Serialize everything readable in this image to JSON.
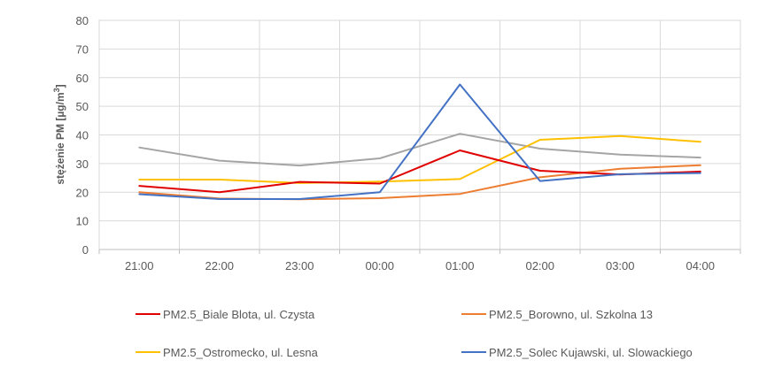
{
  "chart_data": {
    "type": "line",
    "title": "",
    "xlabel": "",
    "ylabel": "stężenie PM [µg/m",
    "ylabel_superscript": "3",
    "ylabel_suffix": "]",
    "ylim": [
      0,
      80
    ],
    "yticks": [
      "0",
      "10",
      "20",
      "30",
      "40",
      "50",
      "60",
      "70",
      "80"
    ],
    "categories": [
      "21:00",
      "22:00",
      "23:00",
      "00:00",
      "01:00",
      "02:00",
      "03:00",
      "04:00"
    ],
    "grid": true,
    "legend_position": "bottom",
    "series": [
      {
        "name": "PM2.5_Biale Blota, ul. Czysta",
        "color": "#e00000",
        "values": [
          22.2,
          20.0,
          23.6,
          23.0,
          34.6,
          27.5,
          26.2,
          27.2
        ]
      },
      {
        "name": "PM2.5_Borowno, ul. Szkolna 13",
        "color": "#ed7d31",
        "values": [
          20.0,
          17.8,
          17.5,
          17.9,
          19.4,
          25.2,
          28.2,
          29.4
        ]
      },
      {
        "name": "PM2.5_Ostromecko, ul. Lesna",
        "color": "#ffc000",
        "values": [
          24.4,
          24.4,
          23.2,
          23.7,
          24.6,
          38.3,
          39.6,
          37.6
        ]
      },
      {
        "name": "PM2.5_Solec Kujawski, ul. Slowackiego",
        "color": "#4472c4",
        "values": [
          19.3,
          17.6,
          17.6,
          20.0,
          57.6,
          23.9,
          26.3,
          26.7
        ]
      },
      {
        "name": "",
        "color": "#a5a5a5",
        "values": [
          35.6,
          31.0,
          29.3,
          31.8,
          40.4,
          35.2,
          33.1,
          32.1
        ]
      }
    ]
  }
}
